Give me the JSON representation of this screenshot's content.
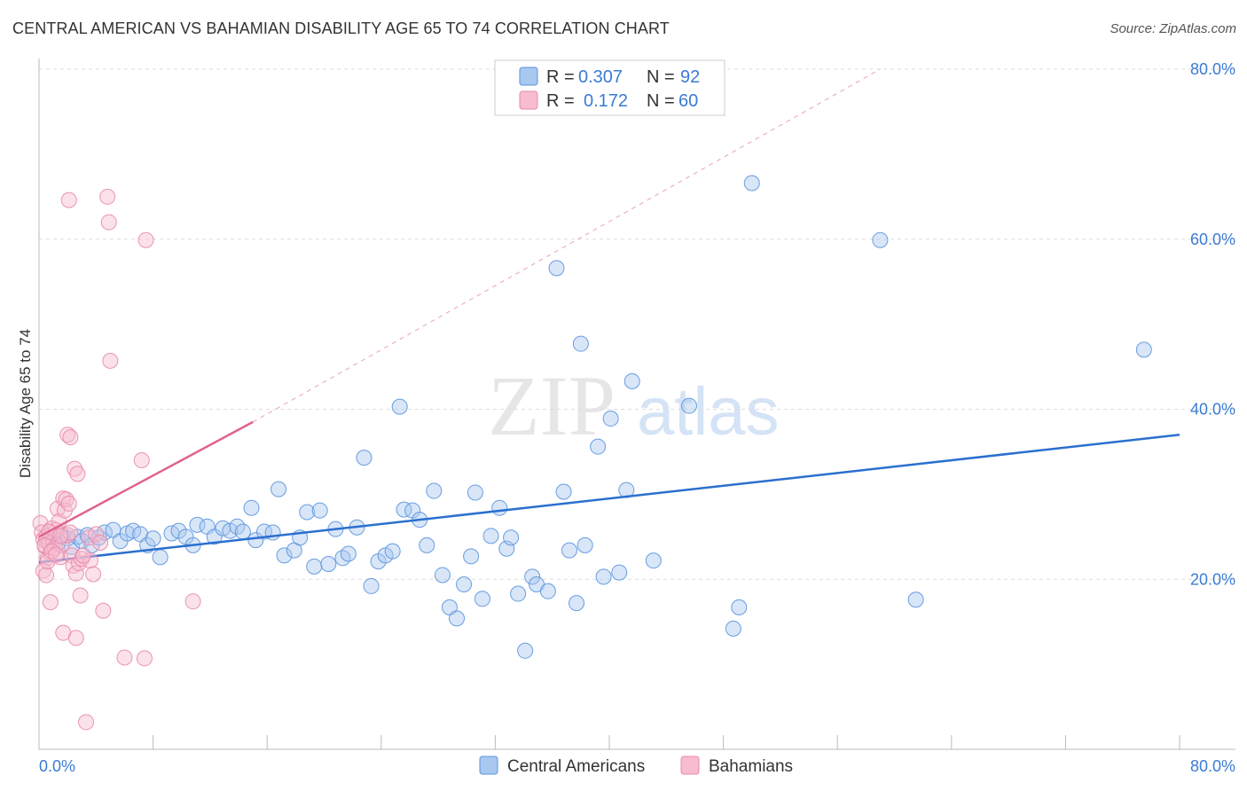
{
  "title": "CENTRAL AMERICAN VS BAHAMIAN DISABILITY AGE 65 TO 74 CORRELATION CHART",
  "source": "Source: ZipAtlas.com",
  "watermark": {
    "zip": "ZIP",
    "atlas": "atlas"
  },
  "colors": {
    "central_fill": "#a9c8f0",
    "central_stroke": "#5b93dd",
    "central_line": "#2a6fcf",
    "bahamian_fill": "#f7bcd0",
    "bahamian_stroke": "#e88aaa",
    "bahamian_line": "#e0628f",
    "tick_blue": "#3a7bd5",
    "grid": "#dddddd"
  },
  "legend": {
    "rows": [
      {
        "r_label": "R = ",
        "r_value": "0.307",
        "n_label": "N = ",
        "n_value": "92"
      },
      {
        "r_label": "R = ",
        "r_value": "0.172",
        "n_label": "N = ",
        "n_value": "60"
      }
    ]
  },
  "bottom_legend": [
    "Central Americans",
    "Bahamians"
  ],
  "chart_data": {
    "type": "scatter",
    "title": "CENTRAL AMERICAN VS BAHAMIAN DISABILITY AGE 65 TO 74 CORRELATION CHART",
    "xlabel": "",
    "ylabel": "Disability Age 65 to 74",
    "xlim": [
      0,
      80
    ],
    "ylim": [
      0,
      80
    ],
    "x_tick_labels": [
      "0.0%",
      "80.0%"
    ],
    "y_ticks": [
      20,
      40,
      60,
      80
    ],
    "y_tick_labels": [
      "20.0%",
      "40.0%",
      "60.0%",
      "80.0%"
    ],
    "series": [
      {
        "name": "Central Americans",
        "R": 0.307,
        "N": 92,
        "trend": {
          "x": [
            0,
            80
          ],
          "y": [
            22.0,
            37.0
          ],
          "style": "solid"
        },
        "points": [
          [
            0.5,
            24.5
          ],
          [
            1.0,
            25.0
          ],
          [
            1.3,
            24.2
          ],
          [
            1.6,
            25.3
          ],
          [
            2.0,
            24.8
          ],
          [
            2.3,
            23.8
          ],
          [
            2.7,
            25.0
          ],
          [
            3.0,
            24.5
          ],
          [
            3.4,
            25.2
          ],
          [
            3.7,
            24.0
          ],
          [
            4.2,
            24.9
          ],
          [
            4.6,
            25.5
          ],
          [
            5.2,
            25.8
          ],
          [
            5.7,
            24.5
          ],
          [
            6.2,
            25.4
          ],
          [
            6.6,
            25.7
          ],
          [
            7.1,
            25.3
          ],
          [
            7.6,
            24.0
          ],
          [
            8.0,
            24.8
          ],
          [
            8.5,
            22.6
          ],
          [
            9.3,
            25.4
          ],
          [
            9.8,
            25.7
          ],
          [
            10.3,
            25.0
          ],
          [
            10.8,
            24.0
          ],
          [
            11.1,
            26.4
          ],
          [
            11.8,
            26.2
          ],
          [
            12.3,
            25.0
          ],
          [
            12.9,
            26.0
          ],
          [
            13.4,
            25.7
          ],
          [
            13.9,
            26.2
          ],
          [
            14.3,
            25.6
          ],
          [
            14.9,
            28.4
          ],
          [
            15.2,
            24.6
          ],
          [
            15.8,
            25.6
          ],
          [
            16.4,
            25.5
          ],
          [
            16.8,
            30.6
          ],
          [
            17.2,
            22.8
          ],
          [
            17.9,
            23.4
          ],
          [
            18.3,
            24.9
          ],
          [
            18.8,
            27.9
          ],
          [
            19.3,
            21.5
          ],
          [
            19.7,
            28.1
          ],
          [
            20.3,
            21.8
          ],
          [
            20.8,
            25.9
          ],
          [
            21.3,
            22.5
          ],
          [
            21.7,
            23.0
          ],
          [
            22.3,
            26.1
          ],
          [
            22.8,
            34.3
          ],
          [
            23.3,
            19.2
          ],
          [
            23.8,
            22.1
          ],
          [
            24.3,
            22.8
          ],
          [
            24.8,
            23.3
          ],
          [
            25.3,
            40.3
          ],
          [
            25.6,
            28.2
          ],
          [
            26.2,
            28.1
          ],
          [
            26.7,
            27.0
          ],
          [
            27.2,
            24.0
          ],
          [
            27.7,
            30.4
          ],
          [
            28.3,
            20.5
          ],
          [
            28.8,
            16.7
          ],
          [
            29.3,
            15.4
          ],
          [
            29.8,
            19.4
          ],
          [
            30.3,
            22.7
          ],
          [
            30.6,
            30.2
          ],
          [
            31.1,
            17.7
          ],
          [
            31.7,
            25.1
          ],
          [
            32.3,
            28.4
          ],
          [
            32.8,
            23.6
          ],
          [
            33.1,
            24.9
          ],
          [
            33.6,
            18.3
          ],
          [
            34.1,
            11.6
          ],
          [
            34.6,
            20.3
          ],
          [
            34.9,
            19.4
          ],
          [
            35.7,
            18.6
          ],
          [
            36.3,
            56.6
          ],
          [
            36.8,
            30.3
          ],
          [
            37.2,
            23.4
          ],
          [
            37.7,
            17.2
          ],
          [
            38.0,
            47.7
          ],
          [
            38.3,
            24.0
          ],
          [
            39.2,
            35.6
          ],
          [
            39.6,
            20.3
          ],
          [
            40.1,
            38.9
          ],
          [
            40.7,
            20.8
          ],
          [
            41.2,
            30.5
          ],
          [
            41.6,
            43.3
          ],
          [
            43.1,
            22.2
          ],
          [
            45.6,
            40.4
          ],
          [
            48.7,
            14.2
          ],
          [
            49.1,
            16.7
          ],
          [
            50.0,
            66.6
          ],
          [
            59.0,
            59.9
          ],
          [
            61.5,
            17.6
          ],
          [
            77.5,
            47.0
          ]
        ]
      },
      {
        "name": "Bahamians",
        "R": 0.172,
        "N": 60,
        "trend": {
          "x": [
            0,
            15
          ],
          "y": [
            25.0,
            38.5
          ],
          "style": "solid",
          "extended": {
            "x": [
              15,
              59
            ],
            "y": [
              38.5,
              80.0
            ],
            "style": "dashed"
          }
        },
        "points": [
          [
            0.1,
            26.6
          ],
          [
            0.2,
            25.5
          ],
          [
            0.3,
            24.7
          ],
          [
            0.4,
            23.9
          ],
          [
            0.5,
            25.0
          ],
          [
            0.6,
            22.5
          ],
          [
            0.7,
            24.2
          ],
          [
            0.8,
            23.1
          ],
          [
            0.9,
            26.0
          ],
          [
            1.0,
            24.5
          ],
          [
            0.3,
            21.0
          ],
          [
            0.5,
            20.5
          ],
          [
            0.6,
            22.1
          ],
          [
            0.8,
            17.3
          ],
          [
            1.1,
            23.7
          ],
          [
            1.2,
            25.8
          ],
          [
            1.3,
            28.3
          ],
          [
            1.4,
            26.8
          ],
          [
            1.5,
            22.6
          ],
          [
            1.6,
            24.0
          ],
          [
            1.7,
            29.5
          ],
          [
            1.8,
            28.1
          ],
          [
            1.9,
            29.4
          ],
          [
            2.0,
            25.2
          ],
          [
            2.1,
            28.9
          ],
          [
            2.2,
            25.5
          ],
          [
            2.3,
            22.8
          ],
          [
            2.0,
            37.0
          ],
          [
            2.2,
            36.7
          ],
          [
            2.5,
            33.0
          ],
          [
            2.7,
            32.4
          ],
          [
            2.4,
            21.6
          ],
          [
            2.6,
            20.7
          ],
          [
            2.8,
            21.9
          ],
          [
            3.0,
            22.4
          ],
          [
            2.9,
            18.1
          ],
          [
            1.7,
            13.7
          ],
          [
            2.6,
            13.1
          ],
          [
            3.5,
            24.9
          ],
          [
            3.6,
            22.2
          ],
          [
            3.8,
            20.6
          ],
          [
            4.0,
            25.3
          ],
          [
            4.3,
            24.3
          ],
          [
            4.5,
            16.3
          ],
          [
            4.8,
            65.0
          ],
          [
            4.9,
            62.0
          ],
          [
            5.0,
            45.7
          ],
          [
            2.1,
            64.6
          ],
          [
            7.5,
            59.9
          ],
          [
            7.2,
            34.0
          ],
          [
            6.0,
            10.8
          ],
          [
            7.4,
            10.7
          ],
          [
            10.8,
            17.4
          ],
          [
            3.3,
            3.2
          ],
          [
            0.4,
            24.0
          ],
          [
            0.9,
            23.3
          ],
          [
            1.2,
            22.9
          ],
          [
            0.7,
            25.6
          ],
          [
            1.5,
            25.1
          ],
          [
            3.1,
            22.8
          ]
        ]
      }
    ]
  }
}
